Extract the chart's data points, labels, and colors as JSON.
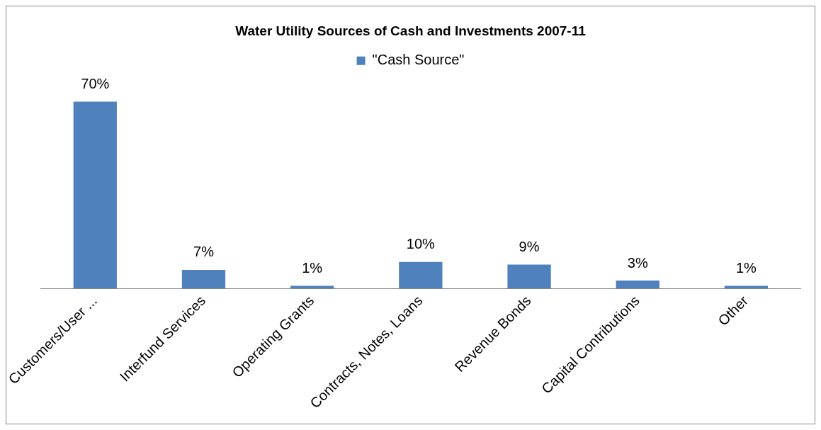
{
  "chart_data": {
    "type": "bar",
    "title": "Water Utility Sources of Cash and Investments 2007-11",
    "categories": [
      "Customers/User ...",
      "Interfund Services",
      "Operating Grants",
      "Contracts, Notes, Loans",
      "Revenue Bonds",
      "Capital Contributions",
      "Other"
    ],
    "series": [
      {
        "name": "\"Cash Source\"",
        "color": "#4f81bd",
        "values": [
          70,
          7,
          1,
          10,
          9,
          3,
          1
        ],
        "value_labels": [
          "70%",
          "7%",
          "1%",
          "10%",
          "9%",
          "3%",
          "1%"
        ]
      }
    ],
    "legend": "top",
    "grid": false
  }
}
